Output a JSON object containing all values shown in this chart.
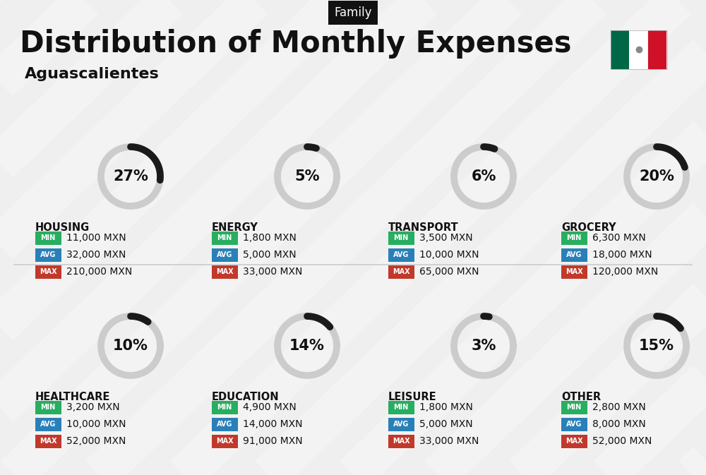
{
  "title": "Distribution of Monthly Expenses",
  "subtitle": "Aguascalientes",
  "tag": "Family",
  "bg_color": "#efefef",
  "categories": [
    {
      "name": "HOUSING",
      "pct": 27,
      "min": "11,000 MXN",
      "avg": "32,000 MXN",
      "max": "210,000 MXN",
      "col": 0,
      "row": 0
    },
    {
      "name": "ENERGY",
      "pct": 5,
      "min": "1,800 MXN",
      "avg": "5,000 MXN",
      "max": "33,000 MXN",
      "col": 1,
      "row": 0
    },
    {
      "name": "TRANSPORT",
      "pct": 6,
      "min": "3,500 MXN",
      "avg": "10,000 MXN",
      "max": "65,000 MXN",
      "col": 2,
      "row": 0
    },
    {
      "name": "GROCERY",
      "pct": 20,
      "min": "6,300 MXN",
      "avg": "18,000 MXN",
      "max": "120,000 MXN",
      "col": 3,
      "row": 0
    },
    {
      "name": "HEALTHCARE",
      "pct": 10,
      "min": "3,200 MXN",
      "avg": "10,000 MXN",
      "max": "52,000 MXN",
      "col": 0,
      "row": 1
    },
    {
      "name": "EDUCATION",
      "pct": 14,
      "min": "4,900 MXN",
      "avg": "14,000 MXN",
      "max": "91,000 MXN",
      "col": 1,
      "row": 1
    },
    {
      "name": "LEISURE",
      "pct": 3,
      "min": "1,800 MXN",
      "avg": "5,000 MXN",
      "max": "33,000 MXN",
      "col": 2,
      "row": 1
    },
    {
      "name": "OTHER",
      "pct": 15,
      "min": "2,800 MXN",
      "avg": "8,000 MXN",
      "max": "52,000 MXN",
      "col": 3,
      "row": 1
    }
  ],
  "min_color": "#27ae60",
  "avg_color": "#2980b9",
  "max_color": "#c0392b",
  "arc_color_filled": "#1a1a1a",
  "arc_color_empty": "#cccccc",
  "title_fontsize": 30,
  "subtitle_fontsize": 16,
  "tag_fontsize": 12,
  "cat_fontsize": 10.5,
  "val_fontsize": 10,
  "pct_fontsize": 15,
  "flag_green": "#006847",
  "flag_white": "#FFFFFF",
  "flag_red": "#CE1126",
  "stripe_color": "#ffffff",
  "divider_color": "#cccccc"
}
